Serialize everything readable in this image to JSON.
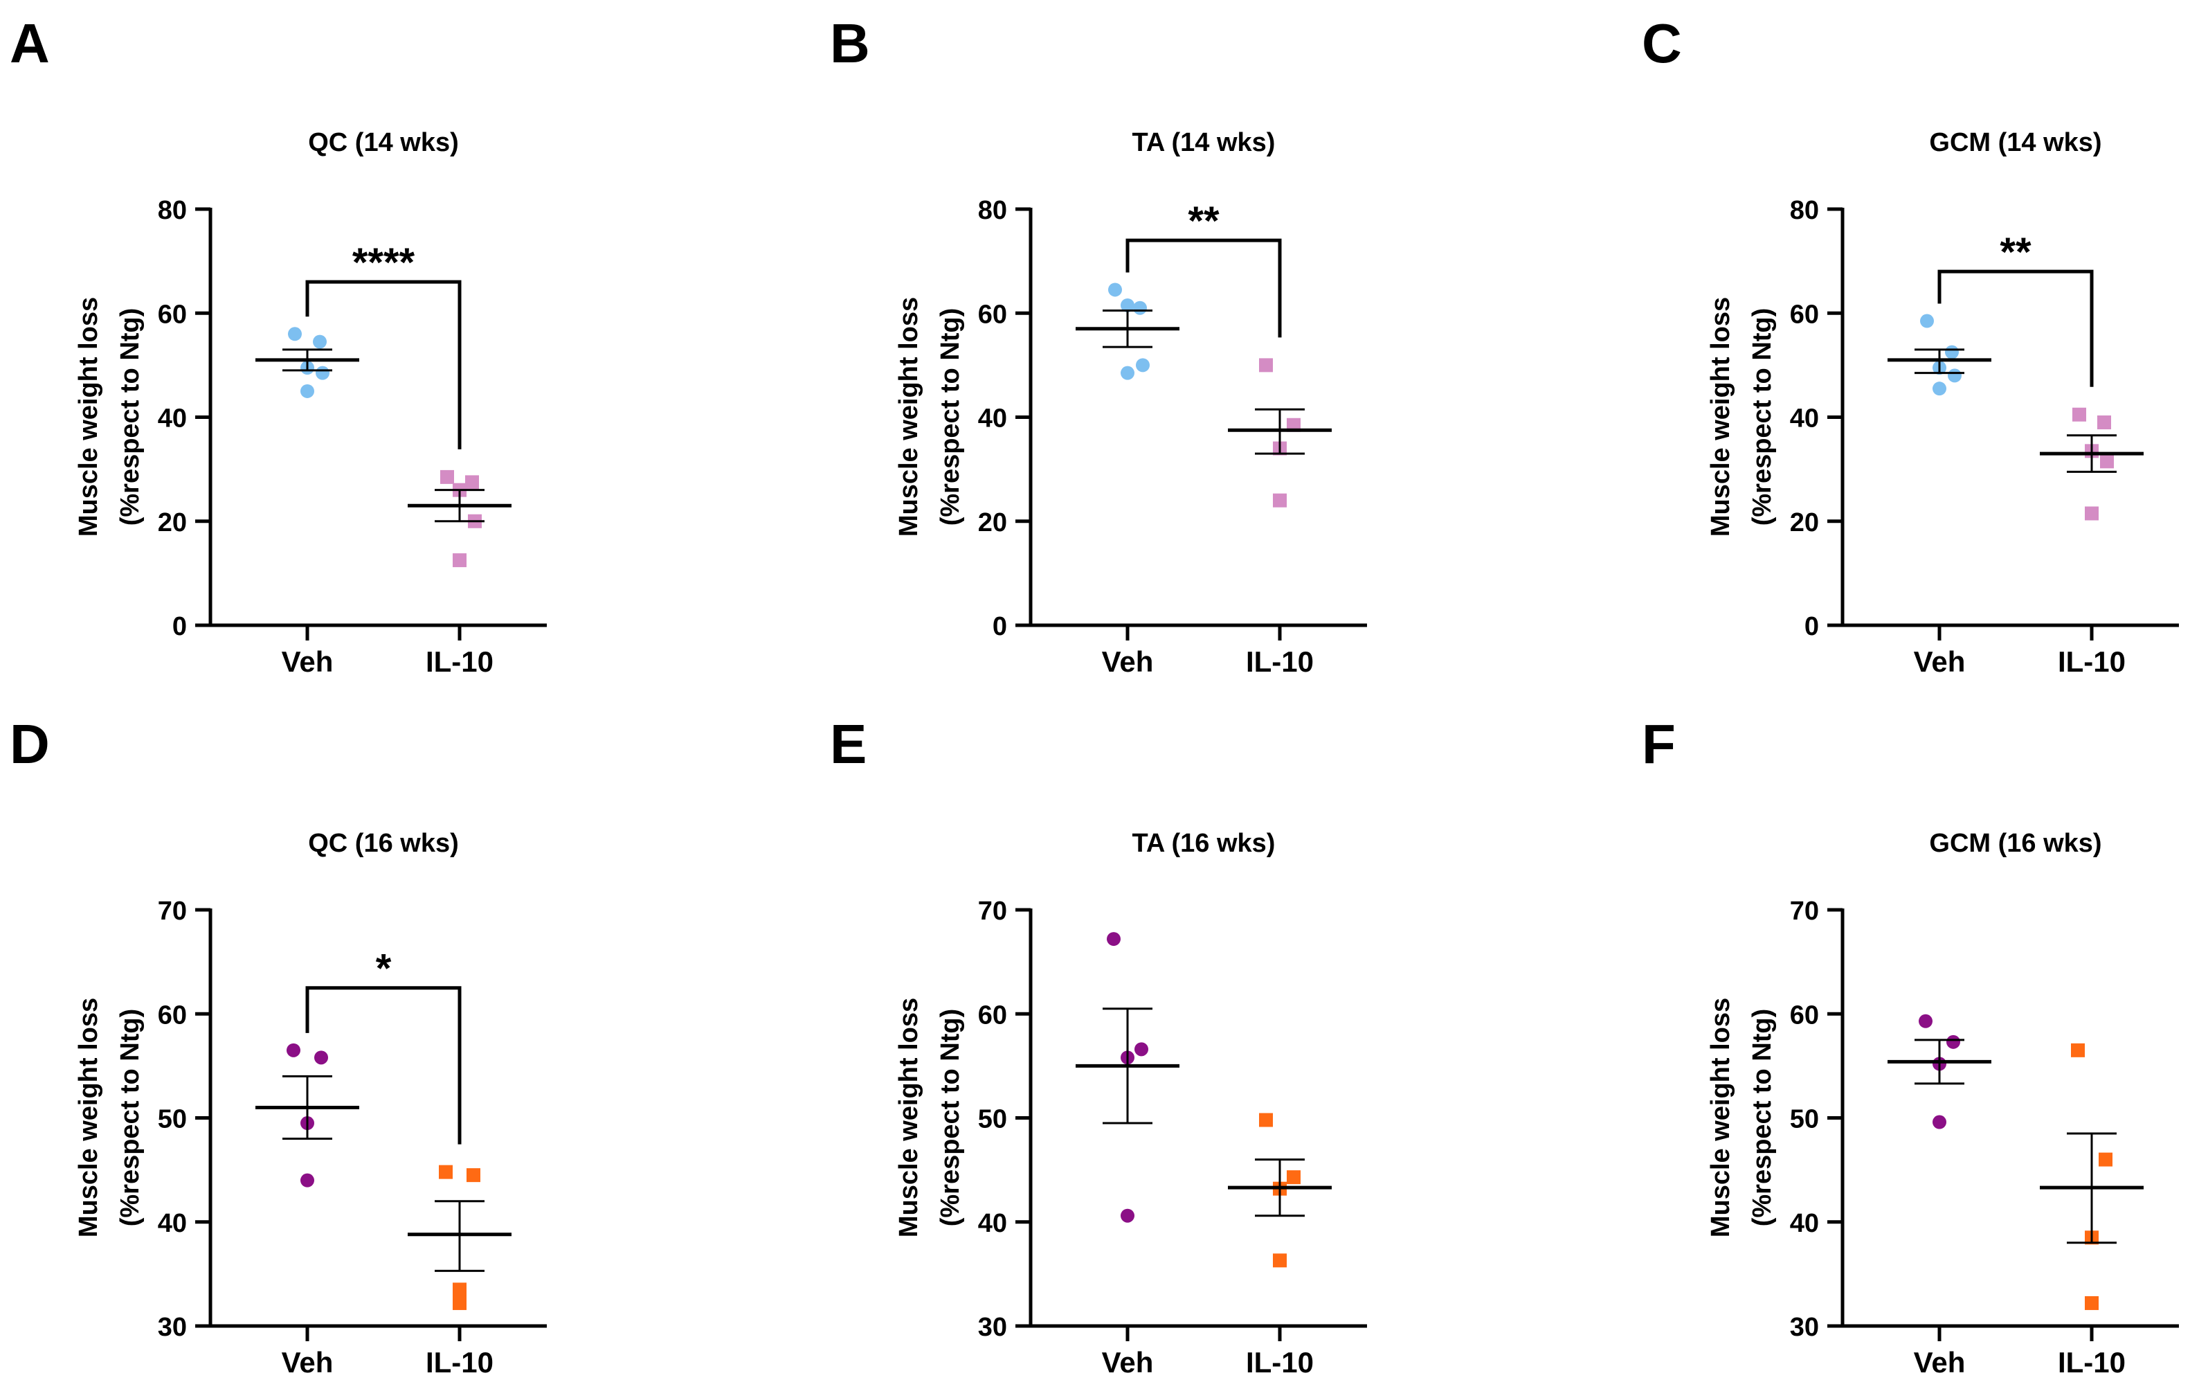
{
  "figure": {
    "colors": {
      "veh_14": "#7dbff0",
      "il10_14": "#d48cc4",
      "veh_16": "#8b0f86",
      "il10_16": "#ff6a13",
      "axis": "#000000"
    }
  },
  "chart_data": [
    {
      "panel": "A",
      "type": "scatter",
      "title": "QC (14 wks)",
      "ylabel": [
        "Muscle weight loss",
        "(%respect to Ntg)"
      ],
      "categories": [
        "Veh",
        "IL-10"
      ],
      "ylim": [
        0,
        80
      ],
      "yticks": [
        0,
        20,
        40,
        60,
        80
      ],
      "series": [
        {
          "name": "Veh",
          "marker": "circle",
          "color": "#7dbff0",
          "values": [
            56,
            54.5,
            49.5,
            48.5,
            45
          ],
          "mean": 51,
          "sem_low": 49,
          "sem_high": 53
        },
        {
          "name": "IL-10",
          "marker": "square",
          "color": "#d48cc4",
          "values": [
            28.5,
            27.5,
            26,
            20,
            12.5
          ],
          "mean": 23,
          "sem_low": 20,
          "sem_high": 26
        }
      ],
      "significance": {
        "label": "****",
        "y": 66
      }
    },
    {
      "panel": "B",
      "type": "scatter",
      "title": "TA (14 wks)",
      "ylabel": [
        "Muscle weight loss",
        "(%respect to Ntg)"
      ],
      "categories": [
        "Veh",
        "IL-10"
      ],
      "ylim": [
        0,
        80
      ],
      "yticks": [
        0,
        20,
        40,
        60,
        80
      ],
      "series": [
        {
          "name": "Veh",
          "marker": "circle",
          "color": "#7dbff0",
          "values": [
            64.5,
            61,
            61.5,
            50,
            48.5
          ],
          "mean": 57,
          "sem_low": 53.5,
          "sem_high": 60.5
        },
        {
          "name": "IL-10",
          "marker": "square",
          "color": "#d48cc4",
          "values": [
            50,
            38.5,
            34,
            24
          ],
          "mean": 37.5,
          "sem_low": 33,
          "sem_high": 41.5
        }
      ],
      "significance": {
        "label": "**",
        "y": 74
      }
    },
    {
      "panel": "C",
      "type": "scatter",
      "title": "GCM (14 wks)",
      "ylabel": [
        "Muscle weight loss",
        "(%respect to Ntg)"
      ],
      "categories": [
        "Veh",
        "IL-10"
      ],
      "ylim": [
        0,
        80
      ],
      "yticks": [
        0,
        20,
        40,
        60,
        80
      ],
      "series": [
        {
          "name": "Veh",
          "marker": "circle",
          "color": "#7dbff0",
          "values": [
            58.5,
            52.5,
            49.5,
            48,
            45.5
          ],
          "mean": 51,
          "sem_low": 48.5,
          "sem_high": 53
        },
        {
          "name": "IL-10",
          "marker": "square",
          "color": "#d48cc4",
          "values": [
            40.5,
            39,
            33.5,
            31.5,
            21.5
          ],
          "mean": 33,
          "sem_low": 29.5,
          "sem_high": 36.5
        },
        {
          "name": "",
          "marker": "none",
          "color": "#ffffff",
          "values": []
        }
      ],
      "significance": {
        "label": "**",
        "y": 68
      }
    },
    {
      "panel": "D",
      "type": "scatter",
      "title": "QC (16 wks)",
      "ylabel": [
        "Muscle weight loss",
        "(%respect to Ntg)"
      ],
      "categories": [
        "Veh",
        "IL-10"
      ],
      "ylim": [
        30,
        70
      ],
      "yticks": [
        30,
        40,
        50,
        60,
        70
      ],
      "series": [
        {
          "name": "Veh",
          "marker": "circle",
          "color": "#8b0f86",
          "values": [
            56.5,
            55.8,
            49.5,
            44
          ],
          "mean": 51,
          "sem_low": 48,
          "sem_high": 54
        },
        {
          "name": "IL-10",
          "marker": "square",
          "color": "#ff6a13",
          "values": [
            44.8,
            44.5,
            33.5,
            32.2
          ],
          "mean": 38.8,
          "sem_low": 35.3,
          "sem_high": 42
        }
      ],
      "significance": {
        "label": "*",
        "y": 62.5
      }
    },
    {
      "panel": "E",
      "type": "scatter",
      "title": "TA (16 wks)",
      "ylabel": [
        "Muscle weight loss",
        "(%respect to Ntg)"
      ],
      "categories": [
        "Veh",
        "IL-10"
      ],
      "ylim": [
        30,
        70
      ],
      "yticks": [
        30,
        40,
        50,
        60,
        70
      ],
      "series": [
        {
          "name": "Veh",
          "marker": "circle",
          "color": "#8b0f86",
          "values": [
            67.2,
            56.6,
            55.8,
            40.6
          ],
          "mean": 55,
          "sem_low": 49.5,
          "sem_high": 60.5
        },
        {
          "name": "IL-10",
          "marker": "square",
          "color": "#ff6a13",
          "values": [
            49.8,
            44.3,
            43.2,
            36.3
          ],
          "mean": 43.3,
          "sem_low": 40.6,
          "sem_high": 46
        }
      ],
      "significance": null
    },
    {
      "panel": "F",
      "type": "scatter",
      "title": "GCM (16 wks)",
      "ylabel": [
        "Muscle weight loss",
        "(%respect to Ntg)"
      ],
      "categories": [
        "Veh",
        "IL-10"
      ],
      "ylim": [
        30,
        70
      ],
      "yticks": [
        30,
        40,
        50,
        60,
        70
      ],
      "series": [
        {
          "name": "Veh",
          "marker": "circle",
          "color": "#8b0f86",
          "values": [
            59.3,
            57.3,
            55.2,
            49.6
          ],
          "mean": 55.4,
          "sem_low": 53.3,
          "sem_high": 57.5
        },
        {
          "name": "IL-10",
          "marker": "square",
          "color": "#ff6a13",
          "values": [
            56.5,
            46,
            38.5,
            32.2
          ],
          "mean": 43.3,
          "sem_low": 38,
          "sem_high": 48.5
        }
      ],
      "significance": null
    }
  ]
}
